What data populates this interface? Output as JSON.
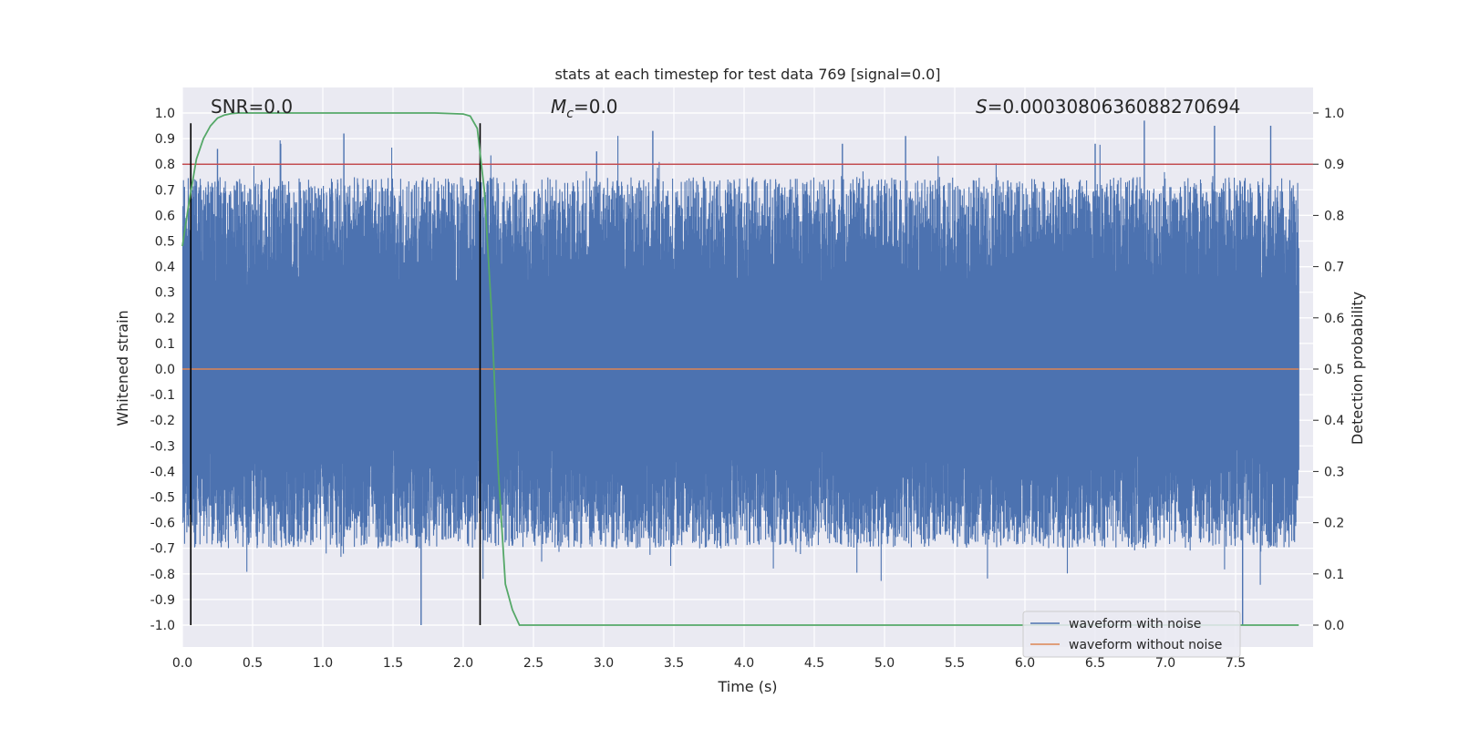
{
  "chart_data": {
    "type": "line",
    "title": "stats at each timestep for test data 769 [signal=0.0]",
    "xlabel": "Time (s)",
    "ylabel": "Whitened strain",
    "ylabel_right": "Detection probability",
    "xlim": [
      0.0,
      8.0
    ],
    "ylim": [
      -1.0,
      1.0
    ],
    "ylim_right": [
      0.0,
      1.0
    ],
    "x_ticks": [
      "0.0",
      "0.5",
      "1.0",
      "1.5",
      "2.0",
      "2.5",
      "3.0",
      "3.5",
      "4.0",
      "4.5",
      "5.0",
      "5.5",
      "6.0",
      "6.5",
      "7.0",
      "7.5"
    ],
    "y_ticks": [
      "1.0",
      "0.9",
      "0.8",
      "0.7",
      "0.6",
      "0.5",
      "0.4",
      "0.3",
      "0.2",
      "0.1",
      "0.0",
      "-0.1",
      "-0.2",
      "-0.3",
      "-0.4",
      "-0.5",
      "-0.6",
      "-0.7",
      "-0.8",
      "-0.9",
      "-1.0"
    ],
    "y_ticks_right": [
      "1.0",
      "0.9",
      "0.8",
      "0.7",
      "0.6",
      "0.5",
      "0.4",
      "0.3",
      "0.2",
      "0.1",
      "0.0"
    ],
    "annotations": {
      "snr": "SNR=0.0",
      "mc_symbol": "M",
      "mc_sub": "c",
      "mc_value": "=0.0",
      "s_symbol": "S",
      "s_value": "=0.0003080636088270694"
    },
    "legend": {
      "location": "lower-right",
      "entries": [
        "waveform with noise",
        "waveform without noise"
      ]
    },
    "colors": {
      "noise": "#4c72b0",
      "clean": "#dd8452",
      "probability": "#55a868",
      "threshold": "#c44e52",
      "markers": "#000000",
      "background": "#eaeaf2",
      "grid": "#ffffff"
    },
    "threshold": 0.9,
    "vertical_markers": [
      0.06,
      2.12
    ],
    "series": [
      {
        "name": "waveform with noise",
        "description": "dense whitened noise, amplitude envelope approx +/-0.3 to +/-1.0",
        "peak_x": [
          0.25,
          0.7,
          1.15,
          1.7,
          2.95,
          3.35,
          4.7,
          5.15,
          6.5,
          6.85,
          7.35,
          7.55,
          7.75
        ],
        "peak_y": [
          0.86,
          0.88,
          0.92,
          -1.0,
          0.85,
          0.93,
          0.88,
          0.91,
          0.88,
          0.97,
          0.95,
          -1.0,
          0.95
        ]
      },
      {
        "name": "waveform without noise",
        "x": [
          0.0,
          8.0
        ],
        "y": [
          0.0,
          0.0
        ]
      },
      {
        "name": "detection probability",
        "axis": "right",
        "x": [
          0.0,
          0.05,
          0.1,
          0.15,
          0.2,
          0.25,
          0.3,
          0.35,
          0.4,
          0.5,
          1.0,
          1.5,
          1.8,
          2.0,
          2.05,
          2.1,
          2.15,
          2.2,
          2.25,
          2.3,
          2.35,
          2.4,
          2.5,
          3.0,
          5.0,
          7.95
        ],
        "y": [
          0.74,
          0.83,
          0.91,
          0.95,
          0.975,
          0.99,
          0.996,
          0.999,
          1.0,
          1.0,
          1.0,
          1.0,
          1.0,
          0.998,
          0.994,
          0.97,
          0.85,
          0.62,
          0.3,
          0.08,
          0.03,
          0.0,
          0.0,
          0.0,
          0.0,
          0.0
        ]
      }
    ]
  }
}
